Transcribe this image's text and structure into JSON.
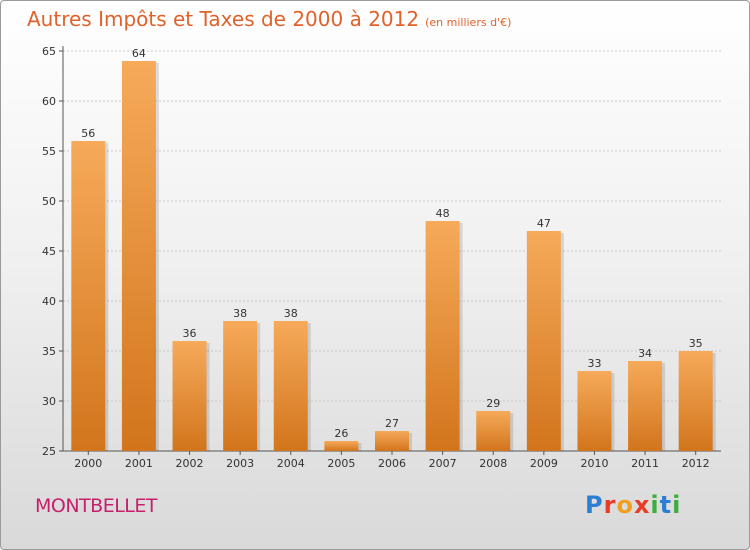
{
  "title": "Autres Impôts et Taxes de 2000 à 2012",
  "title_unit": "(en milliers d'€)",
  "place_name": "MONTBELLET",
  "logo": {
    "letters": [
      "P",
      "r",
      "o",
      "x",
      "i",
      "t",
      "i"
    ],
    "colors": [
      "#2a7fd4",
      "#e83c2a",
      "#f0a020",
      "#e83c2a",
      "#3cae3c",
      "#2a7fd4",
      "#3cae3c"
    ]
  },
  "colors": {
    "bar_top": "#f6aa5a",
    "bar_bottom": "#d2751c",
    "title": "#e0622a",
    "place": "#c6206c"
  },
  "chart_data": {
    "type": "bar",
    "title": "Autres Impôts et Taxes de 2000 à 2012",
    "ylabel": "",
    "categories": [
      "2000",
      "2001",
      "2002",
      "2003",
      "2004",
      "2005",
      "2006",
      "2007",
      "2008",
      "2009",
      "2010",
      "2011",
      "2012"
    ],
    "values": [
      56,
      64,
      36,
      38,
      38,
      26,
      27,
      48,
      29,
      47,
      33,
      34,
      35
    ],
    "ylim": [
      25,
      65
    ],
    "yticks": [
      25,
      30,
      35,
      40,
      45,
      50,
      55,
      60,
      65
    ],
    "grid": true
  }
}
